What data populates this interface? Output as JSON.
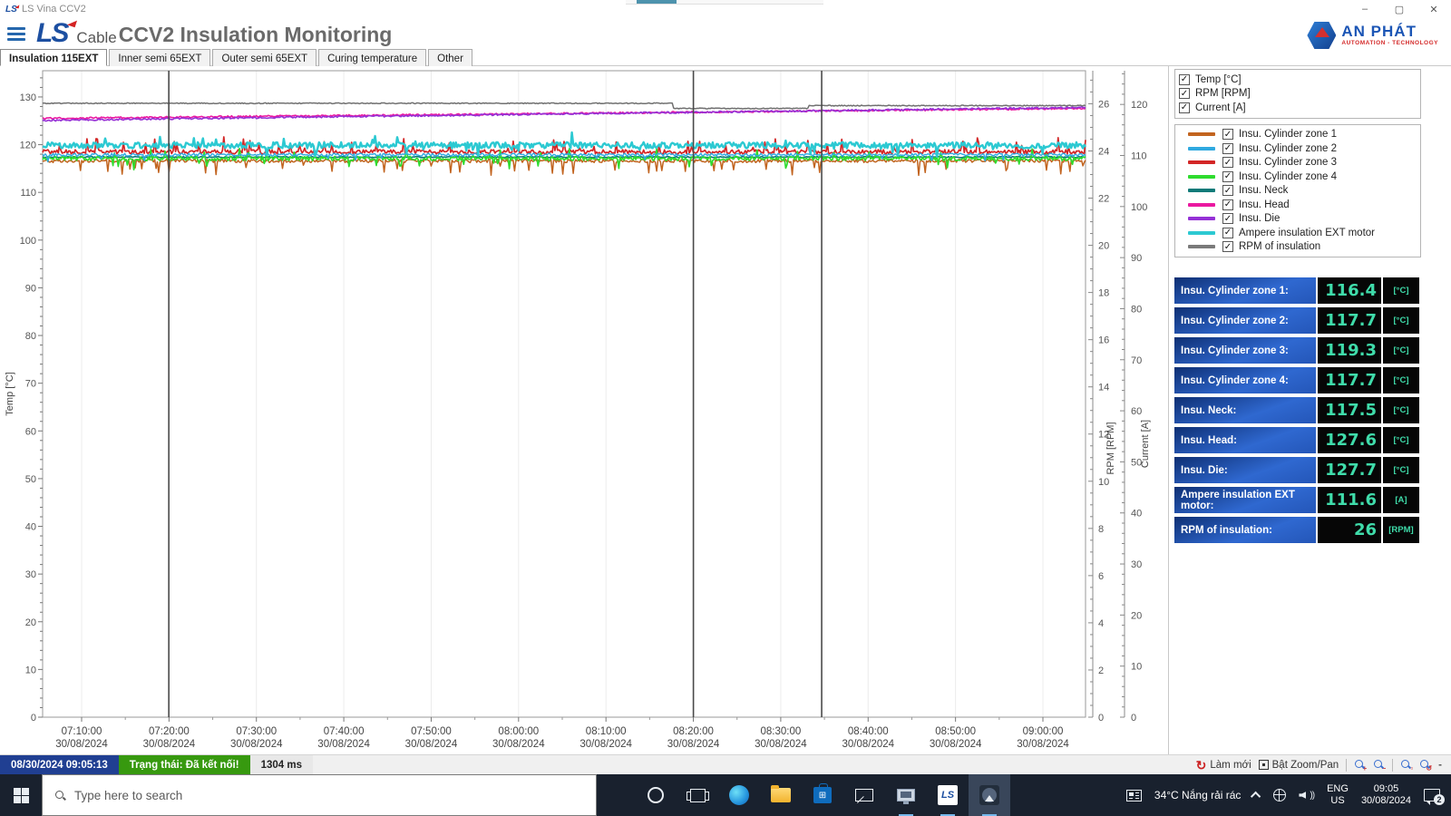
{
  "titlebar": {
    "app_title": "LS Vina CCV2",
    "minimize": "–",
    "maximize": "▢",
    "close": "✕"
  },
  "header": {
    "logo_main": "LS",
    "logo_sub": "Cable",
    "title": "CCV2 Insulation Monitoring",
    "anphat_name": "AN PHÁT",
    "anphat_tagline": "AUTOMATION - TECHNOLOGY"
  },
  "tabs": [
    {
      "label": "Insulation 115EXT",
      "active": true
    },
    {
      "label": "Inner semi 65EXT",
      "active": false
    },
    {
      "label": "Outer semi 65EXT",
      "active": false
    },
    {
      "label": "Curing temperature",
      "active": false
    },
    {
      "label": "Other",
      "active": false
    }
  ],
  "legend": {
    "axis_toggles": [
      {
        "label": "Temp [°C]",
        "checked": true
      },
      {
        "label": "RPM [RPM]",
        "checked": true
      },
      {
        "label": "Current [A]",
        "checked": true
      }
    ],
    "series_toggles": [
      {
        "label": "Insu. Cylinder zone 1",
        "color": "#c2641f",
        "checked": true
      },
      {
        "label": "Insu. Cylinder zone 2",
        "color": "#2fa9e0",
        "checked": true
      },
      {
        "label": "Insu. Cylinder zone 3",
        "color": "#d32626",
        "checked": true
      },
      {
        "label": "Insu. Cylinder zone 4",
        "color": "#2fdc2f",
        "checked": true
      },
      {
        "label": "Insu. Neck",
        "color": "#0d7a78",
        "checked": true
      },
      {
        "label": "Insu. Head",
        "color": "#ea18a0",
        "checked": true
      },
      {
        "label": "Insu. Die",
        "color": "#9531d6",
        "checked": true
      },
      {
        "label": "Ampere insulation EXT motor",
        "color": "#2cc9d2",
        "checked": true
      },
      {
        "label": "RPM of insulation",
        "color": "#7a7a7a",
        "checked": true
      }
    ]
  },
  "readouts": [
    {
      "label": "Insu. Cylinder zone 1:",
      "value": "116.4",
      "unit": "[°C]"
    },
    {
      "label": "Insu. Cylinder zone 2:",
      "value": "117.7",
      "unit": "[°C]"
    },
    {
      "label": "Insu. Cylinder zone 3:",
      "value": "119.3",
      "unit": "[°C]"
    },
    {
      "label": "Insu. Cylinder zone 4:",
      "value": "117.7",
      "unit": "[°C]"
    },
    {
      "label": "Insu. Neck:",
      "value": "117.5",
      "unit": "[°C]"
    },
    {
      "label": "Insu. Head:",
      "value": "127.6",
      "unit": "[°C]"
    },
    {
      "label": "Insu. Die:",
      "value": "127.7",
      "unit": "[°C]"
    },
    {
      "label": "Ampere insulation EXT motor:",
      "value": "111.6",
      "unit": "[A]"
    },
    {
      "label": "RPM of insulation:",
      "value": "26",
      "unit": "[RPM]"
    }
  ],
  "chart_data": {
    "type": "line",
    "x_labels_time": [
      "07:10:00",
      "07:20:00",
      "07:30:00",
      "07:40:00",
      "07:50:00",
      "08:00:00",
      "08:10:00",
      "08:20:00",
      "08:30:00",
      "08:40:00",
      "08:50:00",
      "09:00:00"
    ],
    "x_label_date": "30/08/2024",
    "axes": {
      "temp": {
        "label": "Temp [°C]",
        "min": 0,
        "max": 135.5,
        "ticks": [
          0,
          10,
          20,
          30,
          40,
          50,
          60,
          70,
          80,
          90,
          100,
          110,
          120,
          130
        ],
        "minor_step": 2
      },
      "rpm": {
        "label": "RPM [RPM]",
        "min": 0,
        "max": 27.4,
        "ticks": [
          0,
          2,
          4,
          6,
          8,
          10,
          12,
          14,
          16,
          18,
          20,
          22,
          24,
          26
        ],
        "minor_step": 0.5
      },
      "current": {
        "label": "Current [A]",
        "min": 0,
        "max": 126.6,
        "ticks": [
          0,
          10,
          20,
          30,
          40,
          50,
          60,
          70,
          80,
          90,
          100,
          110,
          120
        ],
        "minor_step": 2
      }
    },
    "cursors": [
      0.121,
      0.624,
      0.747
    ],
    "series": [
      {
        "name": "Insu. Neck",
        "color": "#0d7a78",
        "axis": "temp",
        "base": 117.4,
        "noise": 0.12,
        "spikeP": 0,
        "spikeAmp": 0,
        "spikeDir": 0,
        "width": 1.6
      },
      {
        "name": "Insu. Cylinder zone 1",
        "color": "#c2641f",
        "axis": "temp",
        "base": 116.6,
        "noise": 0.35,
        "spikeP": 0.06,
        "spikeAmp": 2.2,
        "spikeDir": -1,
        "width": 1.5
      },
      {
        "name": "Insu. Cylinder zone 3",
        "color": "#d32626",
        "axis": "temp",
        "base": 118.5,
        "noise": 0.45,
        "spikeP": 0.07,
        "spikeAmp": 2.1,
        "spikeDir": 1,
        "width": 1.7
      },
      {
        "name": "Insu. Cylinder zone 4",
        "color": "#2fdc2f",
        "axis": "temp",
        "base": 117.1,
        "noise": 0.45,
        "spikeP": 0.06,
        "spikeAmp": 1.6,
        "spikeDir": 0,
        "width": 1.7
      },
      {
        "name": "Insu. Cylinder zone 2",
        "color": "#2fa9e0",
        "axis": "temp",
        "base": 117.9,
        "noise": 0.3,
        "spikeP": 0.02,
        "spikeAmp": 1.0,
        "spikeDir": -1,
        "width": 1.4
      },
      {
        "name": "Ampere insulation EXT motor",
        "color": "#2cc9d2",
        "axis": "current",
        "base": 112.0,
        "noise": 0.6,
        "spikeP": 0.05,
        "spikeAmp": 1.5,
        "spikeDir": 0,
        "width": 2.4
      },
      {
        "name": "Insu. Head",
        "color": "#ea18a0",
        "axis": "temp",
        "trend": [
          125.5,
          127.6
        ],
        "noise": 0.18,
        "width": 1.6
      },
      {
        "name": "Insu. Die",
        "color": "#9531d6",
        "axis": "temp",
        "trend": [
          125.1,
          127.8
        ],
        "noise": 0.18,
        "width": 1.6
      },
      {
        "name": "RPM of insulation",
        "color": "#707070",
        "axis": "rpm",
        "steps": [
          [
            0,
            26.02
          ],
          [
            0.605,
            25.8
          ],
          [
            0.735,
            25.92
          ]
        ],
        "noise": 0.02,
        "width": 1.5
      }
    ]
  },
  "statusbar": {
    "datetime": "08/30/2024 09:05:13",
    "status": "Trạng thái: Đã kết nối!",
    "latency": "1304 ms",
    "refresh_label": "Làm mới",
    "zoompan_label": "Bật Zoom/Pan"
  },
  "taskbar": {
    "search_placeholder": "Type here to search",
    "weather": "34°C Nắng rải rác",
    "lang_line1": "ENG",
    "lang_line2": "US",
    "time": "09:05",
    "date": "30/08/2024",
    "notif_count": "2"
  }
}
